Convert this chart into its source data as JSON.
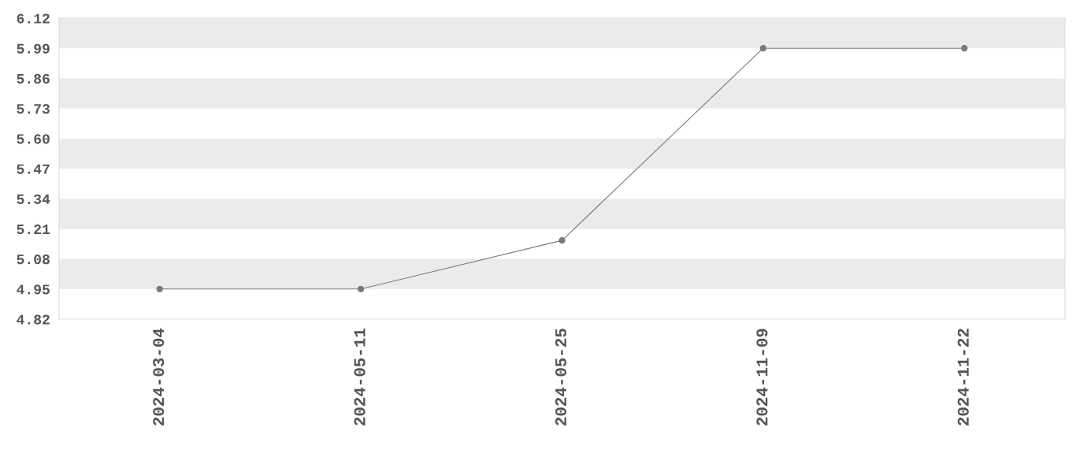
{
  "chart_data": {
    "type": "line",
    "categories": [
      "2024-03-04",
      "2024-05-11",
      "2024-05-25",
      "2024-11-09",
      "2024-11-22"
    ],
    "series": [
      {
        "color": "#7a7a7a",
        "values": [
          4.95,
          4.95,
          5.16,
          5.99,
          5.99
        ]
      }
    ],
    "ylim": [
      4.82,
      6.12
    ],
    "yticks": [
      4.82,
      4.95,
      5.08,
      5.21,
      5.34,
      5.47,
      {
        "value": 5.6,
        "label": "5.60"
      },
      5.73,
      5.86,
      5.99,
      6.12
    ],
    "bands": [
      {
        "axis": "y",
        "from": 4.95,
        "to": 5.08,
        "color": "#ebebeb"
      },
      {
        "axis": "y",
        "from": 5.21,
        "to": 5.34,
        "color": "#ebebeb"
      },
      {
        "axis": "y",
        "from": 5.47,
        "to": 5.6,
        "color": "#ebebeb"
      },
      {
        "axis": "y",
        "from": 5.73,
        "to": 5.86,
        "color": "#ebebeb"
      },
      {
        "axis": "y",
        "from": 5.99,
        "to": 6.12,
        "color": "#ebebeb"
      }
    ],
    "grid": false,
    "legend": false,
    "marker": "circle",
    "line_style": "solid"
  }
}
